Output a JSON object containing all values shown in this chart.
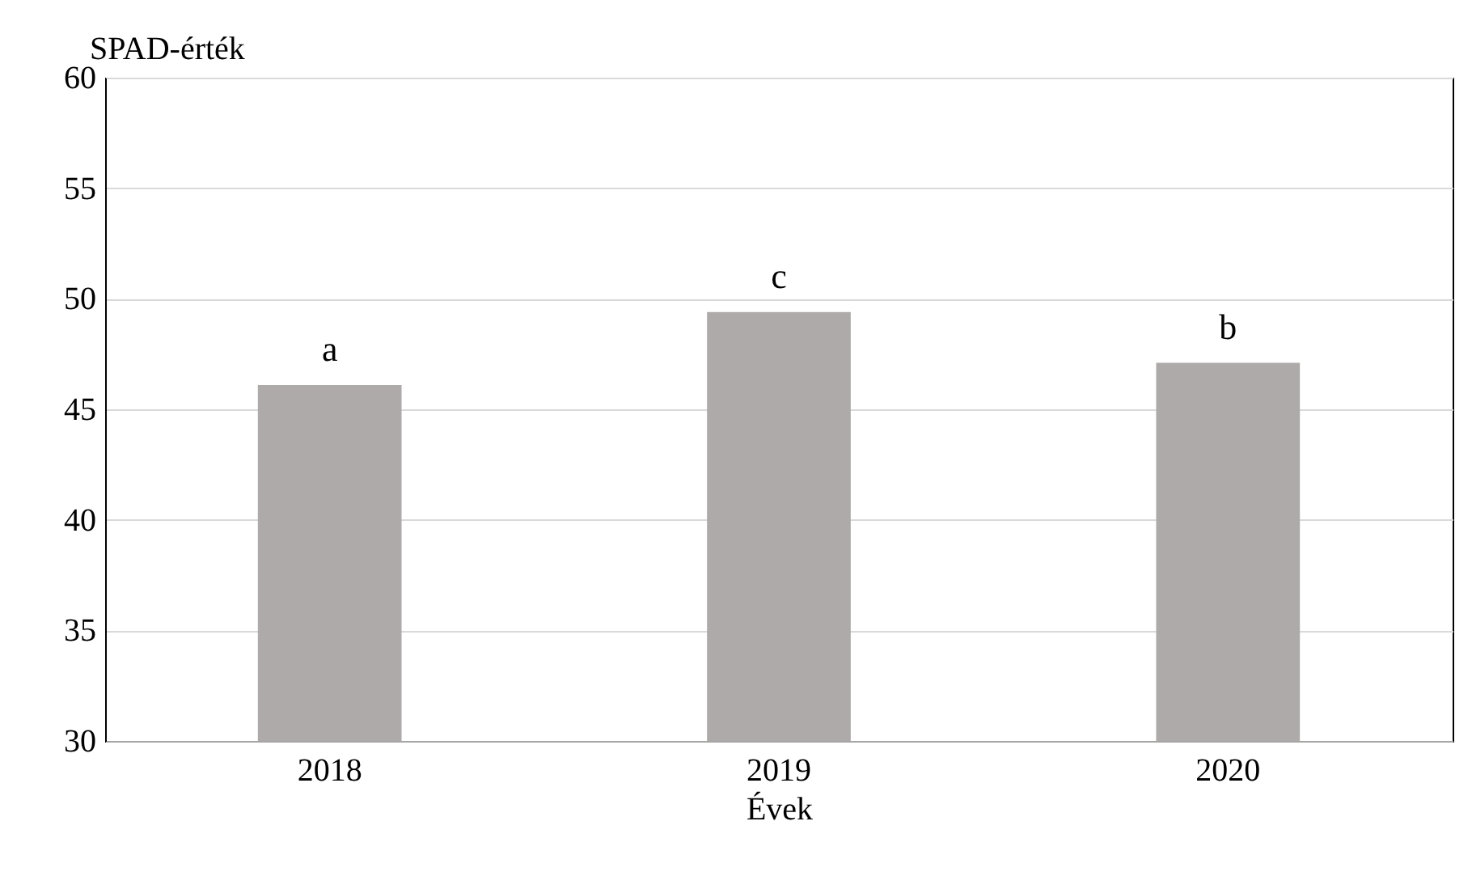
{
  "chart_data": {
    "type": "bar",
    "xlabel": "Évek",
    "ylabel": "SPAD-érték",
    "categories": [
      "2018",
      "2019",
      "2020"
    ],
    "values": [
      46.1,
      49.4,
      47.1
    ],
    "color": "#aeaaaa",
    "ylim": [
      30,
      60
    ],
    "yticks": [
      30,
      35,
      40,
      45,
      50,
      55,
      60
    ],
    "grid": "y",
    "annotations": [
      {
        "text": "a",
        "x": "2018",
        "y": 46.1
      },
      {
        "text": "c",
        "x": "2019",
        "y": 49.4
      },
      {
        "text": "b",
        "x": "2020",
        "y": 47.1
      }
    ]
  }
}
